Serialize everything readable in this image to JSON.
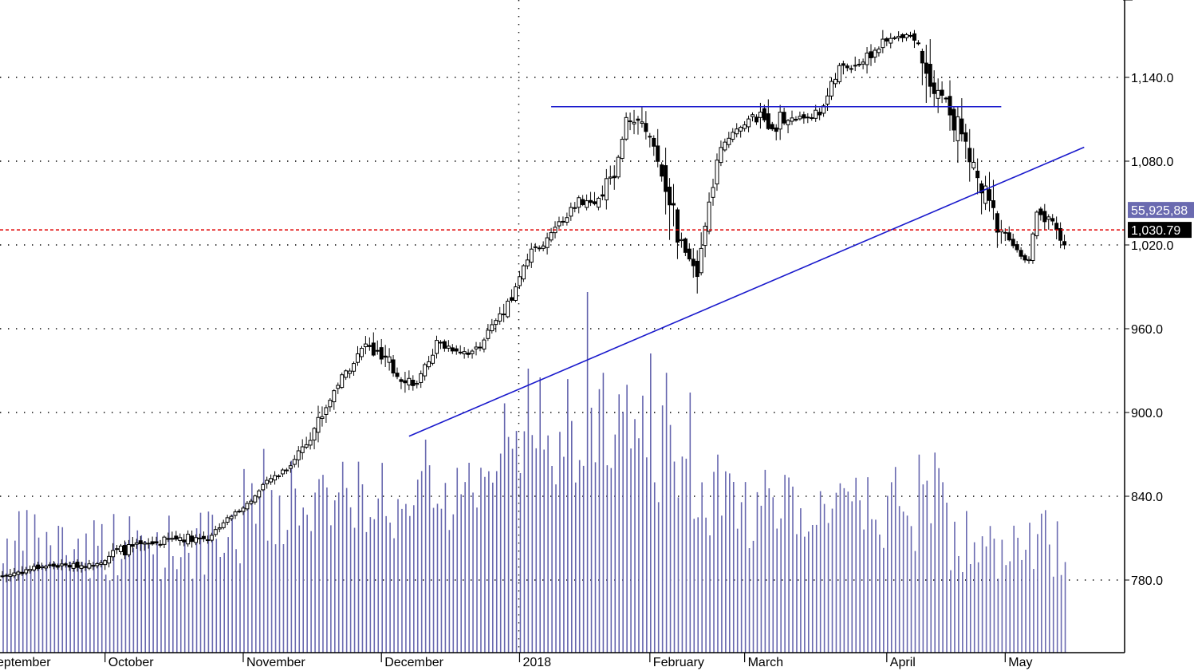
{
  "chart_data": {
    "type": "candlestick",
    "y_axis": {
      "range": [
        740,
        1180
      ],
      "ticks": [
        780,
        840,
        900,
        960,
        1020,
        1080,
        1140
      ],
      "tick_labels": [
        "780.0",
        "840.0",
        "900.0",
        "960.0",
        "1,020.0",
        "1,080.0",
        "1,140.0"
      ]
    },
    "x_axis": {
      "labels": [
        "eptember",
        "October",
        "November",
        "December",
        "2018",
        "February",
        "March",
        "April",
        "May"
      ]
    },
    "last_price": {
      "value": 1030.79,
      "label": "1,030.79",
      "line_color": "#e00000"
    },
    "last_volume": {
      "label": "55,925,88",
      "color": "#6a6ab0"
    },
    "colors": {
      "trendline": "#1a1acc",
      "volume": "#6a6ab0",
      "up": "#ffffff",
      "down": "#000000"
    },
    "trendlines": [
      {
        "name": "resistance",
        "from": {
          "bar": 139,
          "price": 1119
        },
        "to": {
          "bar": 253,
          "price": 1119
        }
      },
      {
        "name": "support",
        "from": {
          "bar": 103,
          "price": 883
        },
        "to": {
          "bar": 274,
          "price": 1090
        }
      }
    ],
    "months": [
      {
        "label": "eptember",
        "bar": 0
      },
      {
        "label": "October",
        "bar": 26
      },
      {
        "label": "November",
        "bar": 61
      },
      {
        "label": "December",
        "bar": 96
      },
      {
        "label": "2018",
        "bar": 131
      },
      {
        "label": "February",
        "bar": 164
      },
      {
        "label": "March",
        "bar": 188
      },
      {
        "label": "April",
        "bar": 224
      },
      {
        "label": "May",
        "bar": 254
      }
    ],
    "anchors": [
      [
        0,
        780,
        786
      ],
      [
        10,
        788,
        792
      ],
      [
        22,
        789,
        792
      ],
      [
        29,
        796,
        805
      ],
      [
        37,
        803,
        808
      ],
      [
        45,
        807,
        814
      ],
      [
        52,
        808,
        812
      ],
      [
        56,
        820,
        823
      ],
      [
        63,
        836,
        838
      ],
      [
        67,
        848,
        852
      ],
      [
        73,
        860,
        866
      ],
      [
        80,
        888,
        899
      ],
      [
        85,
        918,
        924
      ],
      [
        92,
        945,
        952
      ],
      [
        98,
        924,
        940
      ],
      [
        105,
        918,
        922
      ],
      [
        110,
        946,
        953
      ],
      [
        119,
        940,
        945
      ],
      [
        128,
        970,
        980
      ],
      [
        133,
        1008,
        1015
      ],
      [
        138,
        1022,
        1028
      ],
      [
        142,
        1036,
        1040
      ],
      [
        146,
        1050,
        1055
      ],
      [
        150,
        1040,
        1050
      ],
      [
        155,
        1068,
        1080
      ],
      [
        158,
        1108,
        1112
      ],
      [
        161,
        1098,
        1115
      ],
      [
        165,
        1090,
        1100
      ],
      [
        169,
        1040,
        1075
      ],
      [
        171,
        1020,
        1038
      ],
      [
        173,
        1010,
        1015
      ],
      [
        176,
        990,
        1008
      ],
      [
        181,
        1075,
        1085
      ],
      [
        185,
        1100,
        1105
      ],
      [
        190,
        1108,
        1114
      ],
      [
        195,
        1100,
        1118
      ],
      [
        201,
        1108,
        1112
      ],
      [
        207,
        1112,
        1118
      ],
      [
        212,
        1142,
        1150
      ],
      [
        218,
        1148,
        1156
      ],
      [
        223,
        1160,
        1168
      ],
      [
        229,
        1170,
        1173
      ],
      [
        231,
        1165,
        1172
      ],
      [
        234,
        1132,
        1162
      ],
      [
        238,
        1122,
        1132
      ],
      [
        242,
        1090,
        1118
      ],
      [
        245,
        1070,
        1090
      ],
      [
        250,
        1030,
        1058
      ],
      [
        254,
        1025,
        1032
      ],
      [
        258,
        1010,
        1012
      ],
      [
        260,
        1008,
        1010
      ],
      [
        262,
        1040,
        1048
      ],
      [
        265,
        1035,
        1045
      ],
      [
        268,
        1020,
        1028
      ]
    ]
  }
}
